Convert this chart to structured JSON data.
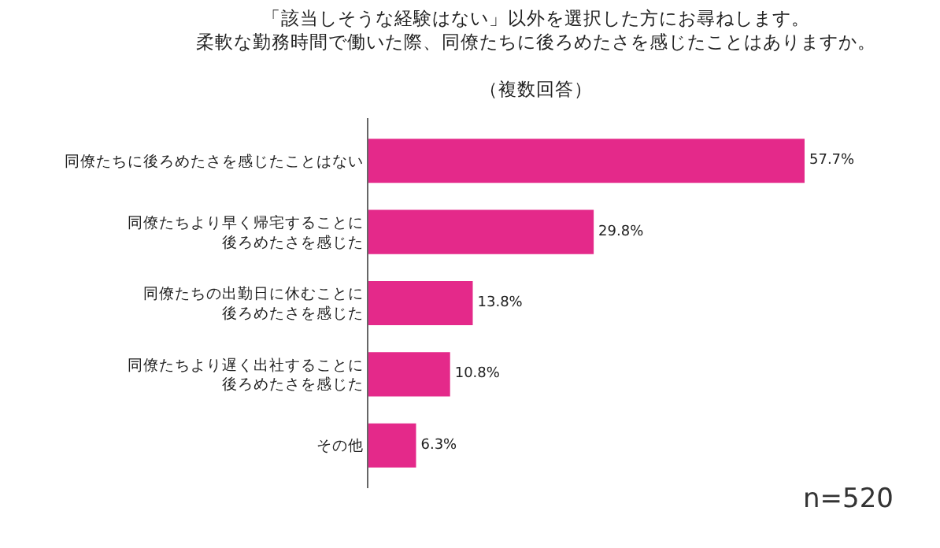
{
  "chart_data": {
    "type": "bar",
    "orientation": "horizontal",
    "title": "「該当しそうな経験はない」以外を選択した方にお尋ねします。柔軟な勤務時間で働いた際、同僚たちに後ろめたさを感じたことはありますか。（複数回答）",
    "categories": [
      "同僚たちに後ろめたさを感じたことはない",
      "同僚たちより早く帰宅することに後ろめたさを感じた",
      "同僚たちの出勤日に休むことに後ろめたさを感じた",
      "同僚たちより遅く出社することに後ろめたさを感じた",
      "その他"
    ],
    "values": [
      57.7,
      29.8,
      13.8,
      10.8,
      6.3
    ],
    "value_labels": [
      "57.7%",
      "29.8%",
      "13.8%",
      "10.8%",
      "6.3%"
    ],
    "color": "#e4298a",
    "annotations": [
      "n=520"
    ]
  }
}
